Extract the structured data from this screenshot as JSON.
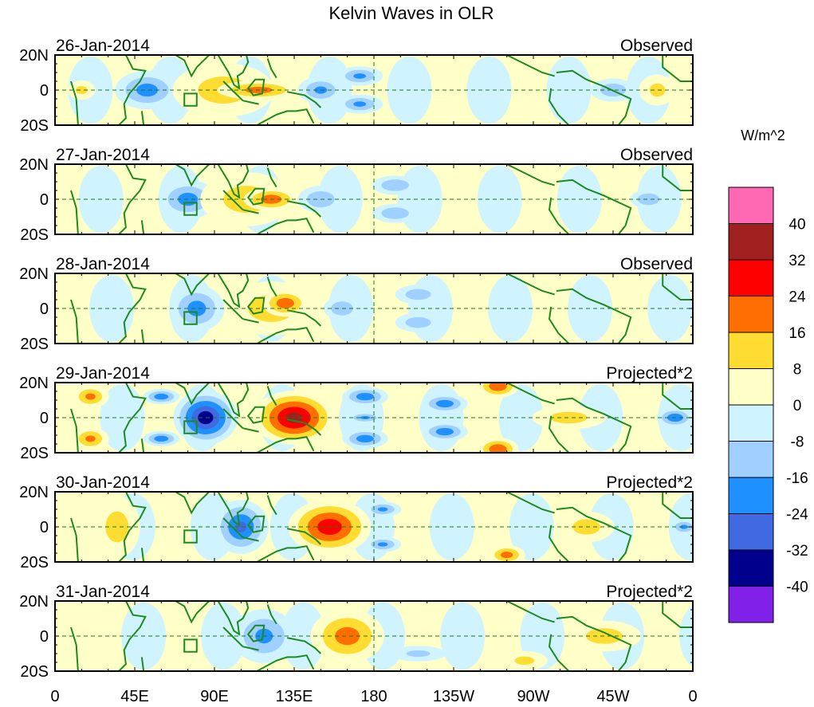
{
  "chart_data": {
    "type": "heatmap",
    "title": "Kelvin Waves in OLR",
    "units_label": "W/m^2",
    "x_axis": {
      "range": [
        0,
        360
      ],
      "ticks": [
        0,
        45,
        90,
        135,
        180,
        225,
        270,
        315,
        360
      ],
      "tick_labels": [
        "0",
        "45E",
        "90E",
        "135E",
        "180",
        "135W",
        "90W",
        "45W",
        "0"
      ]
    },
    "y_axis": {
      "range": [
        -20,
        20
      ],
      "ticks": [
        20,
        0,
        -20
      ],
      "tick_labels": [
        "20N",
        "0",
        "20S"
      ]
    },
    "colorbar": {
      "levels": [
        -40,
        -32,
        -24,
        -16,
        -8,
        0,
        8,
        16,
        24,
        32,
        40
      ],
      "level_labels": [
        "-40",
        "-32",
        "-24",
        "-16",
        "-8",
        "0",
        "8",
        "16",
        "24",
        "32",
        "40"
      ],
      "colors": [
        "#8020E8",
        "#00008C",
        "#4169E1",
        "#1E90FF",
        "#A0D0FF",
        "#D0F4FF",
        "#FFFFC8",
        "#FFDC32",
        "#FF6E00",
        "#FF0000",
        "#A02020",
        "#FF69B4"
      ]
    },
    "panels": [
      {
        "date": "26-Jan-2014",
        "label": "Observed",
        "anomalies": [
          {
            "lon": 52,
            "lat": 0,
            "value": -20,
            "wlon": 14,
            "wlat": 10
          },
          {
            "lon": 95,
            "lat": 0,
            "value": 12,
            "wlon": 22,
            "wlat": 14
          },
          {
            "lon": 115,
            "lat": 0,
            "value": 20,
            "wlon": 18,
            "wlat": 5
          },
          {
            "lon": 150,
            "lat": 0,
            "value": -18,
            "wlon": 10,
            "wlat": 7
          },
          {
            "lon": 172,
            "lat": 8,
            "value": -18,
            "wlon": 10,
            "wlat": 5
          },
          {
            "lon": 172,
            "lat": -8,
            "value": -18,
            "wlon": 10,
            "wlat": 5
          },
          {
            "lon": 15,
            "lat": 0,
            "value": 10,
            "wlon": 6,
            "wlat": 5
          },
          {
            "lon": 315,
            "lat": 0,
            "value": -14,
            "wlon": 10,
            "wlat": 6
          },
          {
            "lon": 340,
            "lat": 0,
            "value": 10,
            "wlon": 8,
            "wlat": 8
          }
        ]
      },
      {
        "date": "27-Jan-2014",
        "label": "Observed",
        "anomalies": [
          {
            "lon": 75,
            "lat": 0,
            "value": -20,
            "wlon": 13,
            "wlat": 10
          },
          {
            "lon": 108,
            "lat": 0,
            "value": 12,
            "wlon": 20,
            "wlat": 14
          },
          {
            "lon": 122,
            "lat": 0,
            "value": 22,
            "wlon": 12,
            "wlat": 6
          },
          {
            "lon": 150,
            "lat": 0,
            "value": -16,
            "wlon": 10,
            "wlat": 7
          },
          {
            "lon": 192,
            "lat": 8,
            "value": -16,
            "wlon": 10,
            "wlat": 5
          },
          {
            "lon": 192,
            "lat": -8,
            "value": -16,
            "wlon": 10,
            "wlat": 5
          },
          {
            "lon": 335,
            "lat": 0,
            "value": -16,
            "wlon": 8,
            "wlat": 5
          }
        ]
      },
      {
        "date": "28-Jan-2014",
        "label": "Observed",
        "anomalies": [
          {
            "lon": 80,
            "lat": 0,
            "value": -20,
            "wlon": 12,
            "wlat": 12
          },
          {
            "lon": 122,
            "lat": 0,
            "value": 12,
            "wlon": 20,
            "wlat": 14
          },
          {
            "lon": 130,
            "lat": 3,
            "value": 22,
            "wlon": 10,
            "wlat": 7
          },
          {
            "lon": 162,
            "lat": 0,
            "value": -16,
            "wlon": 8,
            "wlat": 6
          },
          {
            "lon": 205,
            "lat": 8,
            "value": -14,
            "wlon": 10,
            "wlat": 5
          },
          {
            "lon": 205,
            "lat": -8,
            "value": -14,
            "wlon": 10,
            "wlat": 5
          }
        ]
      },
      {
        "date": "29-Jan-2014",
        "label": "Projected*2",
        "anomalies": [
          {
            "lon": 85,
            "lat": 0,
            "value": -38,
            "wlon": 14,
            "wlat": 14
          },
          {
            "lon": 135,
            "lat": 0,
            "value": 36,
            "wlon": 18,
            "wlat": 14
          },
          {
            "lon": 60,
            "lat": 12,
            "value": -22,
            "wlon": 8,
            "wlat": 4
          },
          {
            "lon": 60,
            "lat": -12,
            "value": -22,
            "wlon": 8,
            "wlat": 4
          },
          {
            "lon": 175,
            "lat": 12,
            "value": -22,
            "wlon": 10,
            "wlat": 5
          },
          {
            "lon": 175,
            "lat": -12,
            "value": -22,
            "wlon": 10,
            "wlat": 5
          },
          {
            "lon": 175,
            "lat": 0,
            "value": -18,
            "wlon": 8,
            "wlat": 3
          },
          {
            "lon": 220,
            "lat": 8,
            "value": -22,
            "wlon": 10,
            "wlat": 5
          },
          {
            "lon": 220,
            "lat": -8,
            "value": -22,
            "wlon": 10,
            "wlat": 5
          },
          {
            "lon": 250,
            "lat": 18,
            "value": 24,
            "wlon": 9,
            "wlat": 6
          },
          {
            "lon": 250,
            "lat": -18,
            "value": 24,
            "wlon": 9,
            "wlat": 6
          },
          {
            "lon": 20,
            "lat": 12,
            "value": 18,
            "wlon": 8,
            "wlat": 6
          },
          {
            "lon": 20,
            "lat": -12,
            "value": 18,
            "wlon": 8,
            "wlat": 6
          },
          {
            "lon": 350,
            "lat": 0,
            "value": -24,
            "wlon": 8,
            "wlat": 5
          },
          {
            "lon": 290,
            "lat": 0,
            "value": 12,
            "wlon": 16,
            "wlat": 6
          }
        ]
      },
      {
        "date": "30-Jan-2014",
        "label": "Projected*2",
        "anomalies": [
          {
            "lon": 105,
            "lat": 0,
            "value": -26,
            "wlon": 12,
            "wlat": 14
          },
          {
            "lon": 155,
            "lat": 0,
            "value": 30,
            "wlon": 18,
            "wlat": 14
          },
          {
            "lon": 185,
            "lat": 10,
            "value": -18,
            "wlon": 8,
            "wlat": 4
          },
          {
            "lon": 185,
            "lat": -10,
            "value": -18,
            "wlon": 8,
            "wlat": 4
          },
          {
            "lon": 255,
            "lat": -16,
            "value": 20,
            "wlon": 8,
            "wlat": 5
          },
          {
            "lon": 35,
            "lat": 0,
            "value": 12,
            "wlon": 10,
            "wlat": 16
          },
          {
            "lon": 300,
            "lat": 0,
            "value": 12,
            "wlon": 12,
            "wlat": 8
          },
          {
            "lon": 355,
            "lat": 0,
            "value": -18,
            "wlon": 6,
            "wlat": 4
          }
        ]
      },
      {
        "date": "31-Jan-2014",
        "label": "Projected*2",
        "anomalies": [
          {
            "lon": 118,
            "lat": 0,
            "value": -18,
            "wlon": 14,
            "wlat": 14
          },
          {
            "lon": 165,
            "lat": 0,
            "value": 20,
            "wlon": 16,
            "wlat": 14
          },
          {
            "lon": 310,
            "lat": 0,
            "value": 12,
            "wlon": 16,
            "wlat": 8
          },
          {
            "lon": 205,
            "lat": -10,
            "value": -10,
            "wlon": 12,
            "wlat": 4
          },
          {
            "lon": 265,
            "lat": -14,
            "value": 10,
            "wlon": 10,
            "wlat": 5
          }
        ]
      }
    ]
  }
}
